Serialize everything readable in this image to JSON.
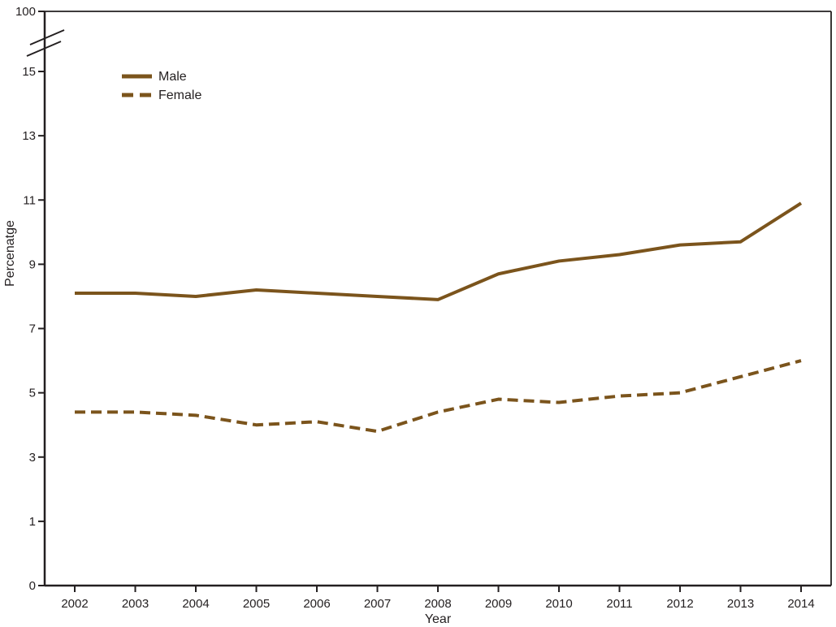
{
  "chart_data": {
    "type": "line",
    "title": "",
    "xlabel": "Year",
    "ylabel": "Percenatge",
    "x": [
      2002,
      2003,
      2004,
      2005,
      2006,
      2007,
      2008,
      2009,
      2010,
      2011,
      2012,
      2013,
      2014
    ],
    "series": [
      {
        "name": "Male",
        "line_style": "solid",
        "values": [
          8.1,
          8.1,
          8.0,
          8.2,
          8.1,
          8.0,
          7.9,
          8.7,
          9.1,
          9.3,
          9.6,
          9.7,
          10.9
        ]
      },
      {
        "name": "Female",
        "line_style": "dashed",
        "values": [
          4.4,
          4.4,
          4.3,
          4.0,
          4.1,
          3.8,
          4.4,
          4.8,
          4.7,
          4.9,
          5.0,
          5.5,
          6.0
        ]
      }
    ],
    "y_ticks": [
      0,
      1,
      3,
      5,
      7,
      9,
      11,
      13,
      15
    ],
    "y_axis_break": {
      "present": true,
      "upper_tick_label": "100"
    },
    "axis_ranges": {
      "y_displayed": [
        0,
        15
      ],
      "y_full_top": 100
    },
    "legend": {
      "position": "top-left",
      "entries": [
        "Male",
        "Female"
      ]
    },
    "grid": "off",
    "colors": {
      "line": "#7B541C",
      "axis": "#231F20",
      "background": "#FFFFFF"
    }
  }
}
